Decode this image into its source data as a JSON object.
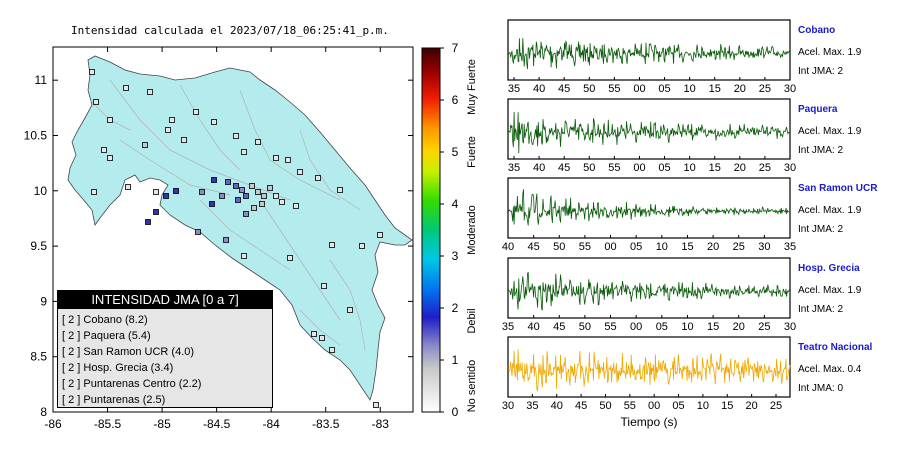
{
  "map": {
    "title": "Intensidad calculada el 2023/07/18_06:25:41_p.m.",
    "lon_ticks": [
      -86,
      -85.5,
      -85,
      -84.5,
      -84,
      -83.5,
      -83
    ],
    "lat_ticks": [
      8,
      8.5,
      9,
      9.5,
      10,
      10.5,
      11
    ],
    "xlim": [
      -86,
      -82.7
    ],
    "ylim": [
      8,
      11.3
    ],
    "land_color": "#b4ecee",
    "legend": {
      "title": "INTENSIDAD JMA [0 a 7]",
      "items": [
        "[ 2 ]  Cobano (8.2)",
        "[ 2 ]  Paquera (5.4)",
        "[ 2 ]  San Ramon UCR (4.0)",
        "[ 2 ]  Hosp. Grecia (3.4)",
        "[ 2 ]  Puntarenas Centro (2.2)",
        "[ 2 ]  Puntarenas (2.5)"
      ]
    }
  },
  "colorbar": {
    "ticks": [
      "0",
      "1",
      "2",
      "3",
      "4",
      "5",
      "6",
      "7"
    ],
    "labels": [
      "No sentido",
      "Debil",
      "Moderado",
      "Fuerte",
      "Muy Fuerte"
    ]
  },
  "chart_data": {
    "type": "line",
    "xlabel": "Tiempo (s)",
    "series": [
      {
        "name": "Cobano",
        "color": "#0a5c0a",
        "line1": "Acel. Max. 1.9",
        "line2": "Int JMA: 2",
        "ticks": [
          "35",
          "40",
          "45",
          "50",
          "55",
          "00",
          "05",
          "10",
          "15",
          "20",
          "25",
          "30"
        ]
      },
      {
        "name": "Paquera",
        "color": "#0a5c0a",
        "line1": "Acel. Max. 1.9",
        "line2": "Int JMA: 2",
        "ticks": [
          "35",
          "40",
          "45",
          "50",
          "55",
          "00",
          "05",
          "10",
          "15",
          "20",
          "25",
          "30"
        ]
      },
      {
        "name": "San Ramon UCR",
        "color": "#0a5c0a",
        "line1": "Acel. Max. 1.9",
        "line2": "Int JMA: 2",
        "ticks": [
          "40",
          "45",
          "50",
          "55",
          "00",
          "05",
          "10",
          "15",
          "20",
          "25",
          "30",
          "35"
        ]
      },
      {
        "name": "Hosp. Grecia",
        "color": "#0a5c0a",
        "line1": "Acel. Max. 1.9",
        "line2": "Int JMA: 2",
        "ticks": [
          "35",
          "40",
          "45",
          "50",
          "55",
          "00",
          "05",
          "10",
          "15",
          "20",
          "25",
          "30"
        ]
      },
      {
        "name": "Teatro Nacional",
        "color": "#f0a800",
        "line1": "Acel. Max. 0.4",
        "line2": "Int JMA: 0",
        "ticks": [
          "30",
          "35",
          "40",
          "45",
          "50",
          "55",
          "00",
          "05",
          "10",
          "15",
          "20",
          "25"
        ]
      }
    ]
  }
}
